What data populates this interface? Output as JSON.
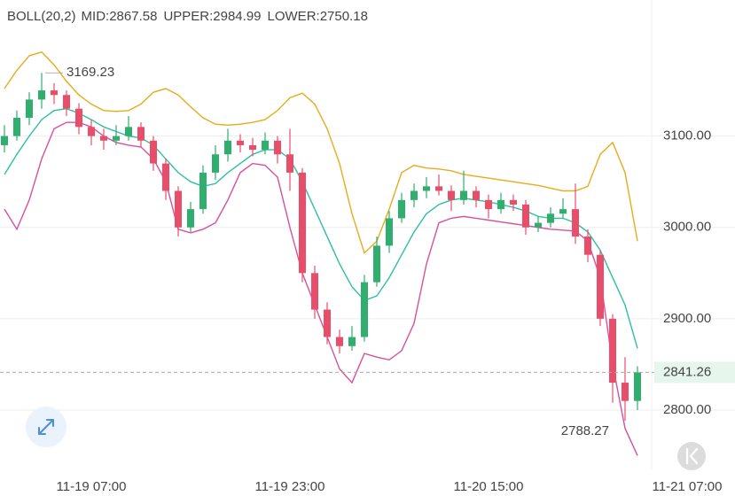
{
  "chart_data": {
    "type": "candlestick",
    "indicator": "BOLL(20,2)",
    "categories": [
      null,
      null,
      null,
      null,
      null,
      null,
      null,
      "11-19 07:00",
      null,
      null,
      null,
      null,
      null,
      null,
      null,
      null,
      null,
      null,
      null,
      null,
      null,
      null,
      null,
      "11-19 23:00",
      null,
      null,
      null,
      null,
      null,
      null,
      null,
      null,
      null,
      null,
      null,
      null,
      null,
      null,
      null,
      "11-20 15:00",
      null,
      null,
      null,
      null,
      null,
      null,
      null,
      null,
      null,
      null,
      null,
      null,
      null,
      null,
      null,
      "11-21 07:00"
    ],
    "open": [
      3090,
      3100,
      3120,
      3140,
      3150,
      3145,
      3130,
      3110,
      3100,
      3095,
      3100,
      3110,
      3095,
      3070,
      3040,
      3000,
      3020,
      3060,
      3080,
      3095,
      3090,
      3085,
      3095,
      3080,
      3060,
      2950,
      2910,
      2880,
      2870,
      2880,
      2940,
      2980,
      3010,
      3030,
      3040,
      3045,
      3040,
      3030,
      3040,
      3030,
      3020,
      3030,
      3025,
      3000,
      3005,
      3015,
      3020,
      2990,
      2970,
      2900,
      2830,
      2810,
      null,
      null,
      null,
      null
    ],
    "high": [
      3112,
      3128,
      3148,
      3169.23,
      3158,
      3150,
      3136,
      3118,
      3108,
      3112,
      3122,
      3115,
      3100,
      3075,
      3045,
      3028,
      3068,
      3090,
      3108,
      3102,
      3098,
      3104,
      3100,
      3108,
      3065,
      2958,
      2918,
      2888,
      2892,
      2948,
      2990,
      3018,
      3038,
      3048,
      3055,
      3058,
      3046,
      3062,
      3045,
      3036,
      3038,
      3036,
      3030,
      3012,
      3022,
      3032,
      3048,
      2998,
      2975,
      2905,
      2858,
      2848,
      null,
      null,
      null,
      null
    ],
    "low": [
      3082,
      3095,
      3112,
      3130,
      3135,
      3122,
      3102,
      3090,
      3085,
      3090,
      3095,
      3088,
      3062,
      3030,
      2990,
      2995,
      3015,
      3052,
      3072,
      3082,
      3078,
      3080,
      3070,
      3040,
      2940,
      2900,
      2872,
      2862,
      2865,
      2875,
      2935,
      2972,
      3005,
      3022,
      3032,
      3035,
      3018,
      3025,
      3022,
      3010,
      3015,
      3018,
      2992,
      2995,
      3000,
      3010,
      2982,
      2962,
      2892,
      2808,
      2788.27,
      2800,
      null,
      null,
      null,
      null
    ],
    "close": [
      3100,
      3120,
      3140,
      3150,
      3145,
      3130,
      3110,
      3100,
      3095,
      3100,
      3110,
      3095,
      3070,
      3040,
      3000,
      3020,
      3060,
      3080,
      3095,
      3090,
      3085,
      3095,
      3080,
      3060,
      2950,
      2910,
      2880,
      2870,
      2880,
      2940,
      2980,
      3010,
      3030,
      3040,
      3045,
      3040,
      3030,
      3040,
      3030,
      3020,
      3030,
      3025,
      3000,
      3005,
      3015,
      3020,
      2990,
      2970,
      2900,
      2830,
      2810,
      2841.26,
      null,
      null,
      null,
      null
    ],
    "up_color": "#2fae6e",
    "down_color": "#e84e6a",
    "series": [
      {
        "name": "MID:2867.58",
        "color": "#2ebfa0",
        "values": [
          3058,
          3080,
          3100,
          3118,
          3128,
          3130,
          3125,
          3118,
          3110,
          3105,
          3100,
          3098,
          3090,
          3075,
          3060,
          3050,
          3045,
          3048,
          3060,
          3070,
          3080,
          3085,
          3085,
          3075,
          3050,
          3020,
          2990,
          2960,
          2935,
          2920,
          2925,
          2945,
          2970,
          2995,
          3015,
          3025,
          3030,
          3032,
          3030,
          3028,
          3025,
          3022,
          3018,
          3012,
          3010,
          3010,
          3005,
          2995,
          2975,
          2945,
          2915,
          2867.58,
          null,
          null,
          null,
          null
        ]
      },
      {
        "name": "UPPER:2984.99",
        "color": "#e3ad1c",
        "values": [
          3152,
          3172,
          3188,
          3192,
          3178,
          3160,
          3145,
          3135,
          3128,
          3127,
          3128,
          3135,
          3148,
          3152,
          3145,
          3132,
          3120,
          3113,
          3112,
          3113,
          3115,
          3118,
          3128,
          3142,
          3147,
          3135,
          3108,
          3070,
          3015,
          2972,
          2985,
          3020,
          3060,
          3068,
          3065,
          3064,
          3062,
          3058,
          3056,
          3054,
          3052,
          3050,
          3048,
          3046,
          3043,
          3040,
          3040,
          3045,
          3080,
          3093,
          3060,
          2984.99,
          null,
          null,
          null,
          null
        ]
      },
      {
        "name": "LOWER:2750.18",
        "color": "#d6519c",
        "values": [
          3020,
          2998,
          3030,
          3075,
          3108,
          3115,
          3115,
          3110,
          3100,
          3093,
          3090,
          3088,
          3075,
          3050,
          2998,
          2994,
          2998,
          3005,
          3030,
          3060,
          3070,
          3068,
          3055,
          3000,
          2950,
          2915,
          2880,
          2845,
          2830,
          2862,
          2858,
          2855,
          2865,
          2895,
          2960,
          3005,
          3010,
          3012,
          3010,
          3008,
          3006,
          3004,
          3002,
          3000,
          2998,
          2997,
          2996,
          2985,
          2945,
          2850,
          2780,
          2750.18,
          null,
          null,
          null,
          null
        ]
      }
    ],
    "ylim": [
      2735,
      3249
    ],
    "yticks": [
      {
        "value": 2800,
        "label": "2800.00"
      },
      {
        "value": 2900,
        "label": "2900.00"
      },
      {
        "value": 3000,
        "label": "3000.00"
      },
      {
        "value": 3100,
        "label": "3100.00"
      }
    ],
    "grid": true
  }
}
